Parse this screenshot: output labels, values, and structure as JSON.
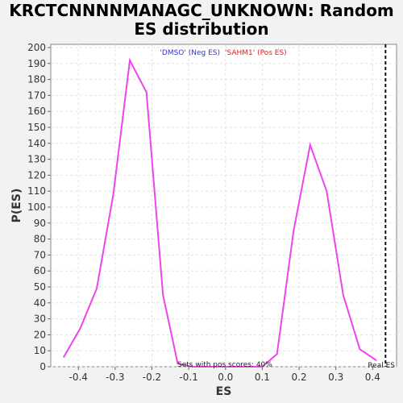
{
  "chart_data": {
    "type": "line",
    "title": "KRCTCNNNNMANAGC_UNKNOWN: Random\nES distribution",
    "xlabel": "ES",
    "ylabel": "P(ES)",
    "xlim": [
      -0.475,
      0.465
    ],
    "ylim": [
      0,
      202
    ],
    "x_ticks": [
      -0.4,
      -0.3,
      -0.2,
      -0.1,
      0.0,
      0.1,
      0.2,
      0.3,
      0.4
    ],
    "y_ticks": [
      0,
      10,
      20,
      30,
      40,
      50,
      60,
      70,
      80,
      90,
      100,
      110,
      120,
      130,
      140,
      150,
      160,
      170,
      180,
      190,
      200
    ],
    "grid": true,
    "legend": {
      "placement": "top-center",
      "entries": [
        {
          "label": "'DMSO' (Neg ES)",
          "color": "#3333cc"
        },
        {
          "label": "'SAHM1' (Pos ES)",
          "color": "#dd2222"
        }
      ]
    },
    "series": [
      {
        "color": "#ee44ee",
        "x": [
          -0.44,
          -0.395,
          -0.35,
          -0.305,
          -0.26,
          -0.215,
          -0.17,
          -0.13,
          -0.09,
          0.0,
          0.1,
          0.14,
          0.185,
          0.23,
          0.275,
          0.32,
          0.365,
          0.41
        ],
        "y": [
          6,
          24,
          49,
          108,
          192,
          172,
          45,
          2,
          0,
          0,
          0,
          8,
          85,
          139,
          110,
          45,
          11,
          4
        ]
      }
    ],
    "real_es": {
      "x": 0.435,
      "label": "Real ES"
    },
    "annotation": "Sets with pos scores: 40%"
  }
}
